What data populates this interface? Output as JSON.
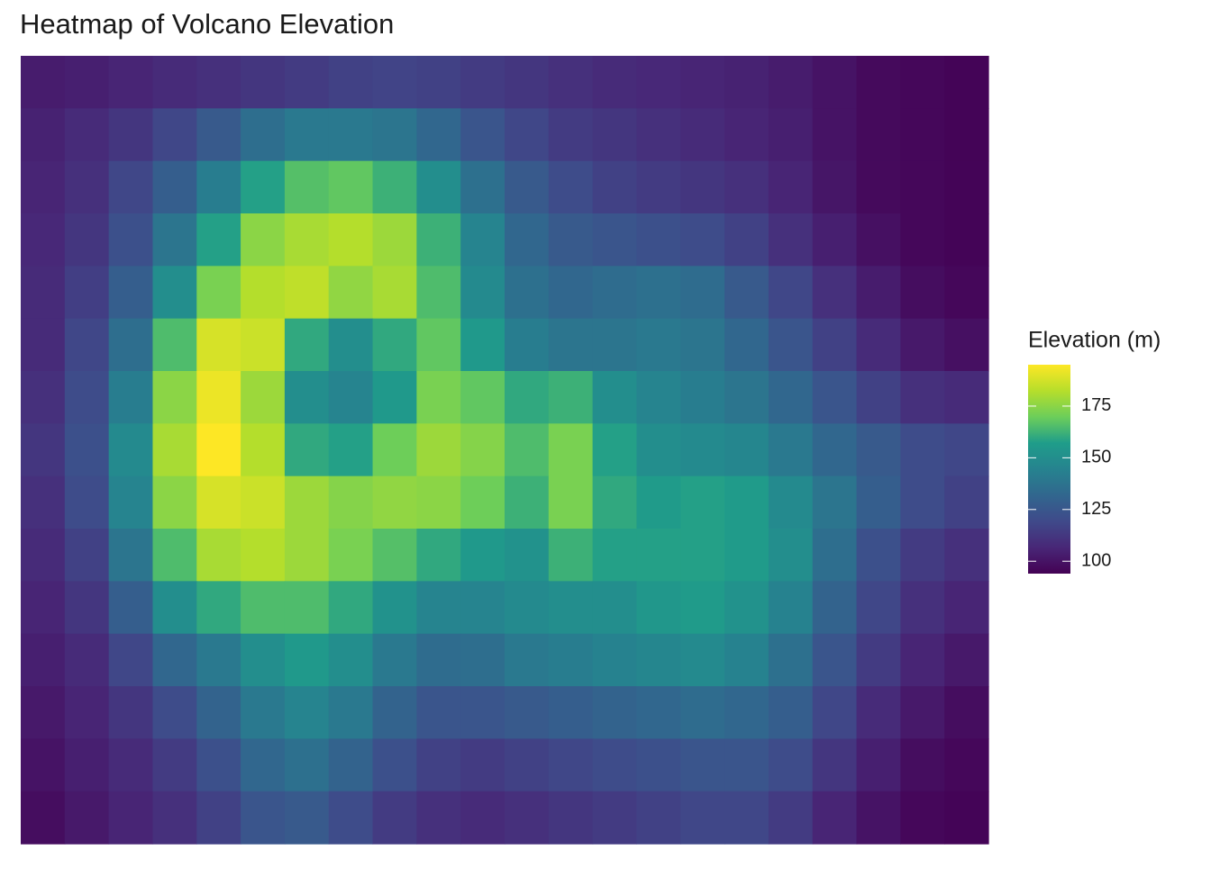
{
  "chart_data": {
    "type": "heatmap",
    "title": "Heatmap of Volcano Elevation",
    "legend_title": "Elevation (m)",
    "colormap": "viridis",
    "zlim": [
      94,
      195
    ],
    "zticks": [
      100,
      125,
      150,
      175
    ],
    "z": [
      [
        103,
        104,
        106,
        108,
        110,
        112,
        114,
        116,
        117,
        116,
        114,
        112,
        110,
        108,
        107,
        106,
        105,
        103,
        100,
        97,
        96,
        95
      ],
      [
        105,
        108,
        112,
        118,
        126,
        135,
        140,
        140,
        138,
        132,
        124,
        118,
        114,
        112,
        110,
        108,
        106,
        104,
        100,
        97,
        96,
        95
      ],
      [
        106,
        110,
        118,
        128,
        142,
        158,
        166,
        168,
        162,
        150,
        136,
        126,
        120,
        116,
        114,
        112,
        110,
        106,
        101,
        97,
        96,
        95
      ],
      [
        107,
        112,
        122,
        138,
        158,
        175,
        180,
        182,
        178,
        162,
        145,
        132,
        126,
        124,
        122,
        120,
        116,
        110,
        104,
        99,
        96,
        95
      ],
      [
        108,
        115,
        128,
        150,
        172,
        182,
        184,
        176,
        180,
        165,
        148,
        136,
        132,
        134,
        136,
        134,
        126,
        118,
        110,
        103,
        98,
        96
      ],
      [
        108,
        118,
        135,
        165,
        188,
        186,
        160,
        150,
        160,
        168,
        155,
        142,
        138,
        138,
        140,
        138,
        132,
        124,
        116,
        108,
        102,
        99
      ],
      [
        110,
        120,
        142,
        175,
        192,
        178,
        150,
        145,
        155,
        172,
        168,
        160,
        162,
        150,
        145,
        142,
        138,
        132,
        124,
        116,
        110,
        108
      ],
      [
        112,
        122,
        148,
        180,
        195,
        182,
        160,
        158,
        170,
        178,
        174,
        165,
        172,
        158,
        150,
        148,
        146,
        140,
        132,
        126,
        120,
        118
      ],
      [
        110,
        120,
        145,
        175,
        188,
        186,
        178,
        174,
        176,
        175,
        170,
        162,
        172,
        160,
        156,
        158,
        156,
        148,
        138,
        128,
        120,
        116
      ],
      [
        108,
        116,
        138,
        165,
        180,
        182,
        178,
        172,
        166,
        160,
        155,
        152,
        162,
        158,
        158,
        158,
        156,
        150,
        135,
        122,
        114,
        110
      ],
      [
        106,
        112,
        128,
        150,
        160,
        165,
        165,
        160,
        152,
        145,
        145,
        148,
        150,
        150,
        154,
        156,
        152,
        144,
        130,
        118,
        110,
        106
      ],
      [
        104,
        108,
        118,
        132,
        140,
        150,
        155,
        150,
        140,
        134,
        135,
        140,
        142,
        144,
        146,
        148,
        144,
        136,
        124,
        114,
        106,
        102
      ],
      [
        102,
        106,
        112,
        120,
        130,
        140,
        145,
        140,
        130,
        124,
        124,
        126,
        128,
        130,
        132,
        134,
        132,
        128,
        118,
        108,
        102,
        98
      ],
      [
        100,
        104,
        108,
        114,
        122,
        132,
        136,
        130,
        122,
        116,
        114,
        116,
        118,
        120,
        122,
        124,
        124,
        120,
        112,
        104,
        98,
        96
      ],
      [
        98,
        102,
        106,
        110,
        116,
        124,
        126,
        120,
        114,
        110,
        108,
        110,
        112,
        114,
        116,
        118,
        118,
        114,
        106,
        100,
        96,
        95
      ]
    ]
  }
}
